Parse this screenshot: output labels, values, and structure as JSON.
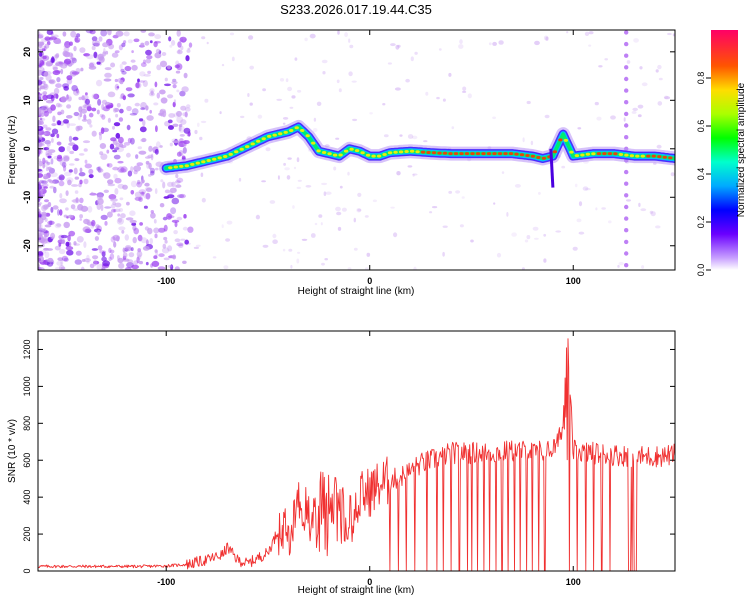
{
  "figure": {
    "title": "S233.2026.017.19.44.C35"
  },
  "colors": {
    "snr_line": "#f03030",
    "spec_bg": "#ffffff",
    "spec_pale": "#c69af0",
    "spec_mid": "#9b3cf0",
    "spec_dark": "#6400e6"
  },
  "chart_data": [
    {
      "type": "heatmap",
      "title": "S233.2026.017.19.44.C35",
      "xlabel": "Height of straight line (km)",
      "ylabel": "Frequency (Hz)",
      "xlim": [
        -163,
        150
      ],
      "ylim": [
        -25,
        24.5
      ],
      "xticks": [
        -100,
        0,
        100
      ],
      "yticks": [
        -20,
        -10,
        0,
        10,
        20
      ],
      "colorbar": {
        "label": "Normalized spectral amplitude",
        "range": [
          0,
          1
        ],
        "ticks": [
          0.0,
          0.2,
          0.4,
          0.6,
          0.8
        ]
      },
      "ridge": {
        "description_points_x": [
          -100,
          -90,
          -80,
          -70,
          -60,
          -50,
          -40,
          -35,
          -30,
          -25,
          -20,
          -15,
          -10,
          -5,
          0,
          5,
          10,
          20,
          30,
          40,
          50,
          60,
          70,
          80,
          85,
          90,
          95,
          100,
          110,
          120,
          130,
          140,
          150
        ],
        "freq_hz": [
          -4,
          -3.5,
          -2.5,
          -1.5,
          0.5,
          2.5,
          3.5,
          4.5,
          2.5,
          -0.5,
          -1,
          -1.5,
          0,
          -0.5,
          -1.5,
          -1.5,
          -0.8,
          -0.5,
          -0.8,
          -1,
          -1,
          -1,
          -1,
          -1.5,
          -2,
          -1.5,
          3,
          -1.5,
          -1,
          -1,
          -1.5,
          -1.5,
          -2
        ]
      },
      "spike_line_x_km": 126
    },
    {
      "type": "line",
      "title": "",
      "xlabel": "Height of straight line (km)",
      "ylabel": "SNR (10 * v/v)",
      "xlim": [
        -163,
        150
      ],
      "ylim": [
        0,
        1300
      ],
      "xticks": [
        -100,
        0,
        100
      ],
      "yticks": [
        0,
        200,
        400,
        600,
        800,
        1000,
        1200
      ],
      "envelope": {
        "x": [
          -163,
          -110,
          -100,
          -90,
          -80,
          -72,
          -70,
          -65,
          -60,
          -50,
          -45,
          -40,
          -35,
          -30,
          -25,
          -20,
          -15,
          -10,
          -5,
          0,
          5,
          10,
          15,
          20,
          25,
          30,
          35,
          40,
          50,
          60,
          70,
          80,
          88,
          92,
          95,
          97,
          100,
          110,
          120,
          130,
          140,
          150
        ],
        "y": [
          25,
          25,
          28,
          35,
          60,
          90,
          130,
          60,
          40,
          100,
          220,
          300,
          380,
          300,
          420,
          400,
          380,
          350,
          400,
          430,
          470,
          490,
          510,
          540,
          580,
          600,
          620,
          640,
          640,
          640,
          650,
          650,
          650,
          680,
          800,
          1300,
          650,
          640,
          630,
          620,
          620,
          630
        ]
      },
      "dropout_x_km": [
        10,
        14,
        18,
        22,
        28,
        33,
        36,
        40,
        44,
        48,
        50,
        53,
        56,
        59,
        62,
        65,
        68,
        71,
        74,
        77,
        80,
        83,
        86,
        98,
        102,
        106,
        110,
        114,
        118,
        127,
        129,
        131
      ]
    }
  ],
  "plots": {
    "top": {
      "xlabel": "Height of straight line (km)",
      "ylabel": "Frequency (Hz)"
    },
    "bottom": {
      "xlabel": "Height of straight line (km)",
      "ylabel": "SNR (10 * v/v)"
    },
    "colorbar_label": "Normalized spectral amplitude"
  },
  "tick_labels": {
    "x": [
      "-100",
      "0",
      "100"
    ],
    "top_y": [
      "-20",
      "-10",
      "0",
      "10",
      "20"
    ],
    "bottom_y": [
      "0",
      "200",
      "400",
      "600",
      "800",
      "1000",
      "1200"
    ],
    "colorbar": [
      "0.0",
      "0.2",
      "0.4",
      "0.6",
      "0.8"
    ]
  }
}
